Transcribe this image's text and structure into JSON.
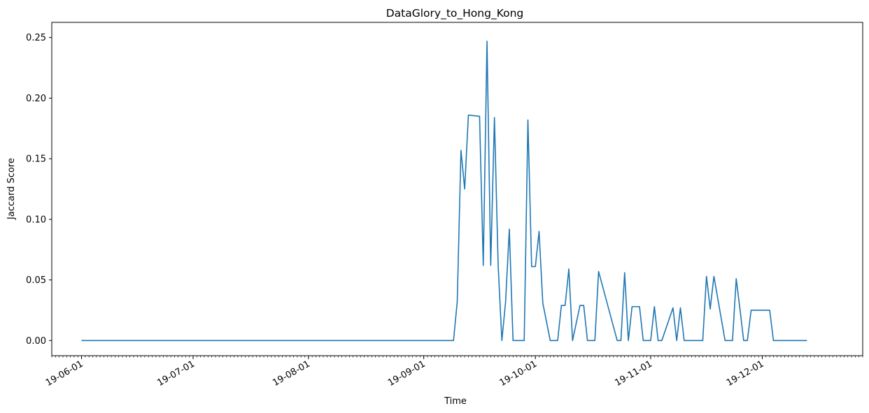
{
  "chart_data": {
    "type": "line",
    "title": "DataGlory_to_Hong_Kong",
    "xlabel": "Time",
    "ylabel": "Jaccard Score",
    "x_axis_type": "date",
    "xlim": [
      "2019-05-24",
      "2019-12-28"
    ],
    "ylim": [
      -0.0125,
      0.2625
    ],
    "grid": false,
    "x_ticks": [
      {
        "date": "2019-06-01",
        "label": "19-06-01"
      },
      {
        "date": "2019-07-01",
        "label": "19-07-01"
      },
      {
        "date": "2019-08-01",
        "label": "19-08-01"
      },
      {
        "date": "2019-09-01",
        "label": "19-09-01"
      },
      {
        "date": "2019-10-01",
        "label": "19-10-01"
      },
      {
        "date": "2019-11-01",
        "label": "19-11-01"
      },
      {
        "date": "2019-12-01",
        "label": "19-12-01"
      }
    ],
    "y_ticks": [
      {
        "value": 0.0,
        "label": "0.00"
      },
      {
        "value": 0.05,
        "label": "0.05"
      },
      {
        "value": 0.1,
        "label": "0.10"
      },
      {
        "value": 0.15,
        "label": "0.15"
      },
      {
        "value": 0.2,
        "label": "0.20"
      },
      {
        "value": 0.25,
        "label": "0.25"
      }
    ],
    "color": "#1f77b4",
    "series": [
      {
        "x": [
          "2019-06-01",
          "2019-09-09",
          "2019-09-10",
          "2019-09-11",
          "2019-09-12",
          "2019-09-13",
          "2019-09-16",
          "2019-09-17",
          "2019-09-18",
          "2019-09-19",
          "2019-09-20",
          "2019-09-21",
          "2019-09-22",
          "2019-09-23",
          "2019-09-24",
          "2019-09-25",
          "2019-09-26",
          "2019-09-27",
          "2019-09-28",
          "2019-09-29",
          "2019-09-30",
          "2019-10-01",
          "2019-10-02",
          "2019-10-03",
          "2019-10-05",
          "2019-10-06",
          "2019-10-07",
          "2019-10-08",
          "2019-10-09",
          "2019-10-10",
          "2019-10-11",
          "2019-10-13",
          "2019-10-14",
          "2019-10-15",
          "2019-10-17",
          "2019-10-18",
          "2019-10-23",
          "2019-10-24",
          "2019-10-25",
          "2019-10-26",
          "2019-10-27",
          "2019-10-29",
          "2019-10-30",
          "2019-11-01",
          "2019-11-02",
          "2019-11-03",
          "2019-11-04",
          "2019-11-07",
          "2019-11-08",
          "2019-11-09",
          "2019-11-10",
          "2019-11-15",
          "2019-11-16",
          "2019-11-17",
          "2019-11-18",
          "2019-11-21",
          "2019-11-22",
          "2019-11-23",
          "2019-11-24",
          "2019-11-25",
          "2019-11-26",
          "2019-11-27",
          "2019-11-28",
          "2019-12-03",
          "2019-12-04",
          "2019-12-13"
        ],
        "y": [
          0.0,
          0.0,
          0.032,
          0.157,
          0.125,
          0.186,
          0.185,
          0.062,
          0.247,
          0.062,
          0.184,
          0.062,
          0.0,
          0.032,
          0.092,
          0.0,
          0.0,
          0.0,
          0.0,
          0.182,
          0.061,
          0.061,
          0.09,
          0.031,
          0.0,
          0.0,
          0.0,
          0.029,
          0.029,
          0.059,
          0.0,
          0.029,
          0.029,
          0.0,
          0.0,
          0.057,
          0.0,
          0.0,
          0.056,
          0.0,
          0.028,
          0.028,
          0.0,
          0.0,
          0.028,
          0.0,
          0.0,
          0.027,
          0.0,
          0.027,
          0.0,
          0.0,
          0.053,
          0.026,
          0.053,
          0.0,
          0.0,
          0.0,
          0.051,
          0.026,
          0.0,
          0.0,
          0.025,
          0.025,
          0.0,
          0.0
        ]
      }
    ]
  }
}
